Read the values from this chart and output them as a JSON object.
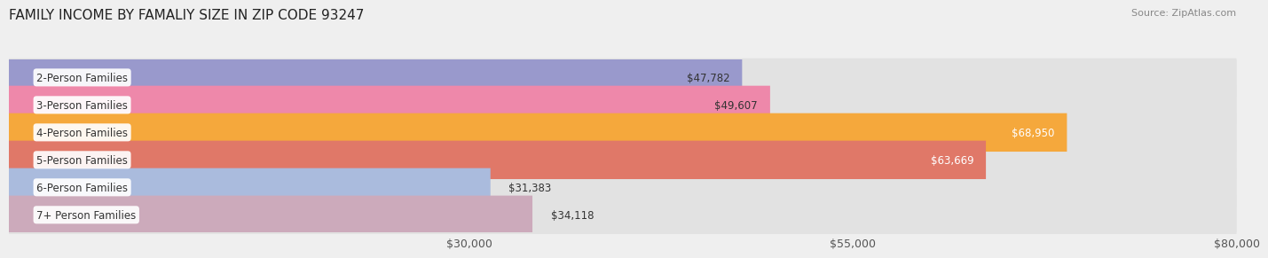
{
  "title": "FAMILY INCOME BY FAMALIY SIZE IN ZIP CODE 93247",
  "source": "Source: ZipAtlas.com",
  "categories": [
    "2-Person Families",
    "3-Person Families",
    "4-Person Families",
    "5-Person Families",
    "6-Person Families",
    "7+ Person Families"
  ],
  "values": [
    47782,
    49607,
    68950,
    63669,
    31383,
    34118
  ],
  "bar_colors": [
    "#9999cc",
    "#ee88aa",
    "#f5a83c",
    "#e07868",
    "#aabbdd",
    "#ccaabb"
  ],
  "label_colors": [
    "#333333",
    "#333333",
    "#ffffff",
    "#ffffff",
    "#333333",
    "#333333"
  ],
  "xlim": [
    0,
    80000
  ],
  "xticks": [
    30000,
    55000,
    80000
  ],
  "xtick_labels": [
    "$30,000",
    "$55,000",
    "$80,000"
  ],
  "background_color": "#efefef",
  "bar_background_color": "#e2e2e2",
  "title_fontsize": 11,
  "source_fontsize": 8,
  "bar_label_fontsize": 8.5,
  "category_fontsize": 8.5
}
